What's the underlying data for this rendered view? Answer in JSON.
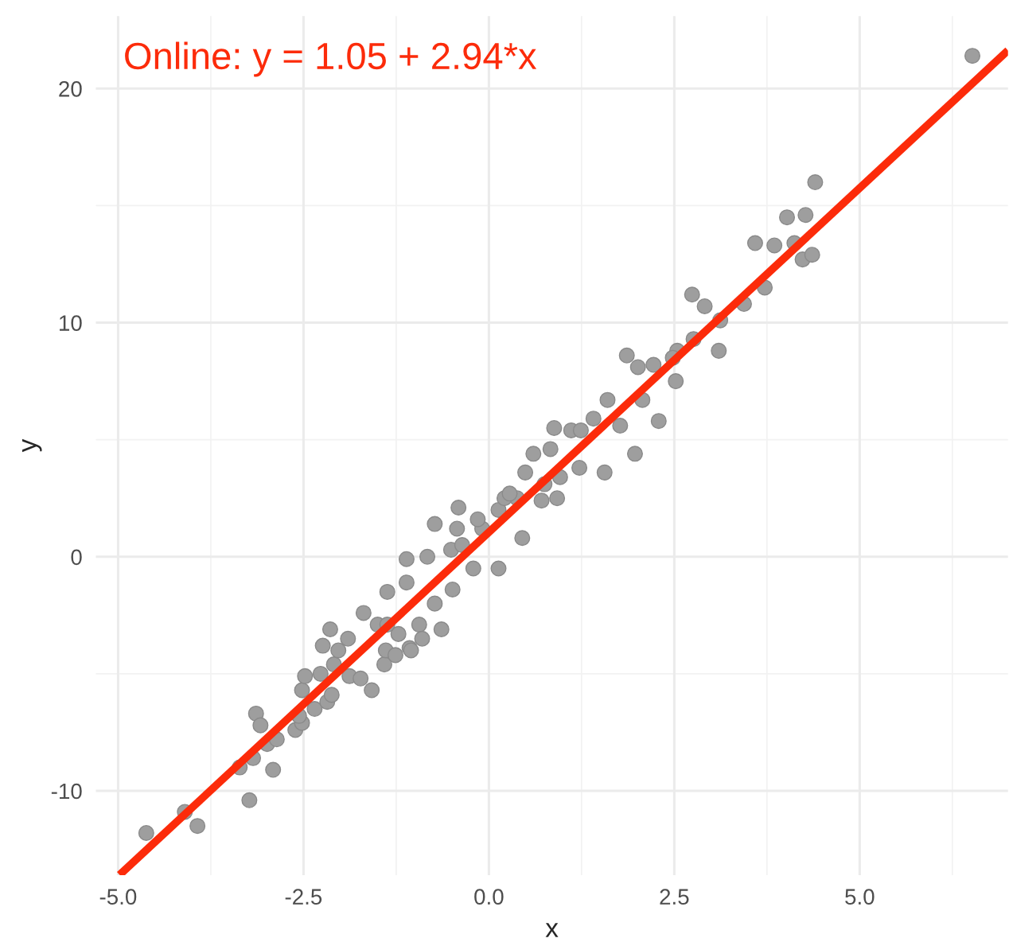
{
  "chart_data": {
    "type": "scatter",
    "xlabel": "x",
    "ylabel": "y",
    "annotations": [
      "Online: y = 1.05 + 2.94*x"
    ],
    "series": [
      {
        "color": "#9e9e9e",
        "marker": "circle",
        "x": [
          -4.62,
          -4.1,
          -3.93,
          -3.23,
          -3.36,
          -3.18,
          -2.91,
          -3.14,
          -3.08,
          -2.99,
          -2.86,
          -2.61,
          -2.52,
          -2.56,
          -2.52,
          -2.48,
          -2.35,
          -2.18,
          -2.12,
          -2.27,
          -2.09,
          -2.14,
          -2.24,
          -2.03,
          -1.9,
          -1.88,
          -1.73,
          -1.58,
          -1.69,
          -1.41,
          -1.39,
          -1.26,
          -1.07,
          -1.22,
          -0.94,
          -1.5,
          -0.41,
          -0.73,
          -1.11,
          -0.83,
          -0.43,
          -0.51,
          -0.21,
          -0.09,
          0.13,
          0.45,
          0.38,
          0.6,
          0.49,
          0.13,
          -0.64,
          -0.9,
          -1.05,
          -1.37,
          -1.37,
          -0.73,
          -0.49,
          -1.11,
          0.21,
          0.83,
          0.88,
          1.11,
          1.24,
          1.41,
          1.6,
          1.86,
          2.01,
          2.22,
          2.54,
          2.52,
          2.29,
          1.97,
          1.56,
          1.22,
          0.92,
          1.77,
          2.07,
          2.74,
          2.91,
          3.1,
          3.12,
          3.44,
          3.59,
          6.52,
          4.4,
          4.02,
          4.27,
          3.85,
          4.12,
          4.23,
          4.36,
          3.72,
          2.76,
          2.48,
          -0.15,
          0.28,
          0.75,
          0.96,
          -0.36,
          0.71
        ],
        "values": [
          -11.8,
          -10.9,
          -11.5,
          -10.4,
          -9.0,
          -8.6,
          -9.1,
          -6.7,
          -7.2,
          -8.0,
          -7.8,
          -7.4,
          -7.1,
          -6.8,
          -5.7,
          -5.1,
          -6.5,
          -6.2,
          -5.9,
          -5.0,
          -4.6,
          -3.1,
          -3.8,
          -4.0,
          -3.5,
          -5.1,
          -5.2,
          -5.7,
          -2.4,
          -4.6,
          -4.0,
          -4.2,
          -3.9,
          -3.3,
          -2.9,
          -2.9,
          2.1,
          1.4,
          -0.1,
          0.0,
          1.2,
          0.3,
          -0.5,
          1.2,
          2.0,
          0.8,
          2.5,
          4.4,
          3.6,
          -0.5,
          -3.1,
          -3.5,
          -4.0,
          -1.5,
          -2.9,
          -2.0,
          -1.4,
          -1.1,
          2.5,
          4.6,
          5.5,
          5.4,
          5.4,
          5.9,
          6.7,
          8.6,
          8.1,
          8.2,
          8.8,
          7.5,
          5.8,
          4.4,
          3.6,
          3.8,
          2.5,
          5.6,
          6.7,
          11.2,
          10.7,
          8.8,
          10.1,
          10.8,
          13.4,
          21.4,
          16.0,
          14.5,
          14.6,
          13.3,
          13.4,
          12.7,
          12.9,
          11.5,
          9.3,
          8.5,
          1.6,
          2.7,
          3.1,
          3.4,
          0.5,
          2.4
        ]
      },
      {
        "type": "line",
        "color": "#fc2b0a",
        "x": [
          -4.98,
          7.0
        ],
        "values": [
          -13.59,
          21.63
        ]
      }
    ],
    "xlim": [
      -5.3,
      7.0
    ],
    "ylim": [
      -13.6,
      23.1
    ],
    "xticks": [
      {
        "value": -5.0,
        "label": "-5.0"
      },
      {
        "value": -2.5,
        "label": "-2.5"
      },
      {
        "value": 0.0,
        "label": "0.0"
      },
      {
        "value": 2.5,
        "label": "2.5"
      },
      {
        "value": 5.0,
        "label": "5.0"
      }
    ],
    "yticks": [
      -10,
      0,
      10,
      20
    ],
    "grid": true,
    "legend": false
  }
}
